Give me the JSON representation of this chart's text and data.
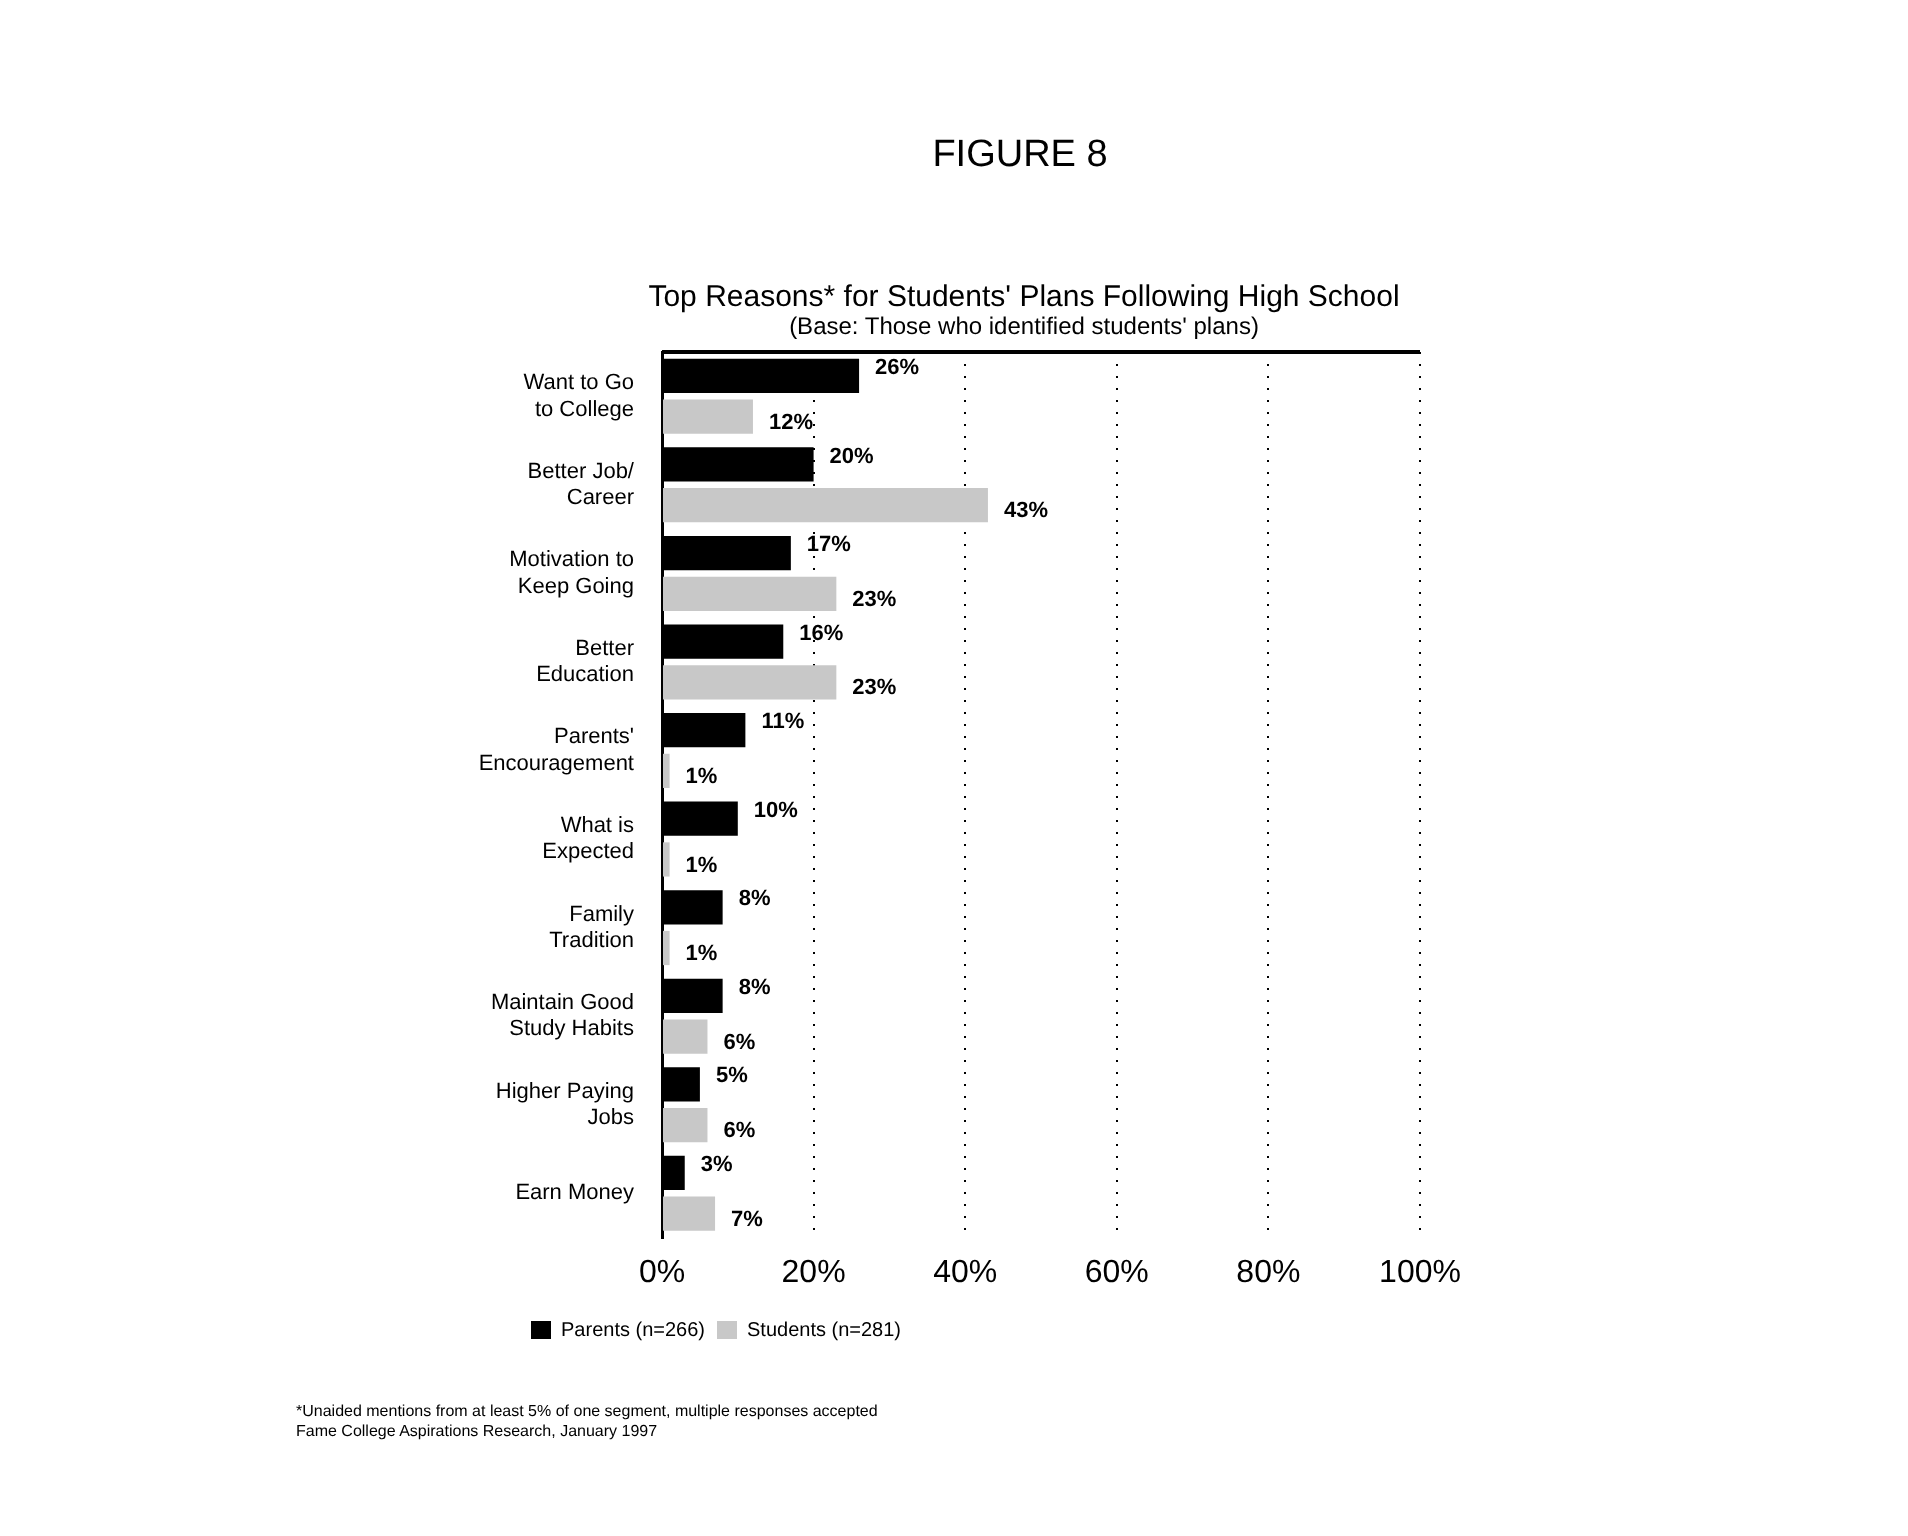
{
  "chart_data": {
    "type": "bar",
    "orientation": "horizontal",
    "title": "FIGURE 8",
    "subtitle": "Top Reasons* for Students' Plans Following High School\n(Base: Those who identified students' plans)",
    "categories": [
      "Want to Go\nto College",
      "Better Job/\nCareer",
      "Motivation to\nKeep Going",
      "Better\nEducation",
      "Parents'\nEncouragement",
      "What is\nExpected",
      "Family\nTradition",
      "Maintain Good\nStudy Habits",
      "Higher Paying\nJobs",
      "Earn Money"
    ],
    "series": [
      {
        "name": "Parents (n=266)",
        "color": "#000000",
        "values": [
          26,
          20,
          17,
          16,
          11,
          10,
          8,
          8,
          5,
          3
        ],
        "value_labels": [
          "26%",
          "20%",
          "17%",
          "16%",
          "11%",
          "10%",
          "8%",
          "8%",
          "5%",
          "3%"
        ]
      },
      {
        "name": "Students (n=281)",
        "color": "#c8c8c8",
        "values": [
          12,
          43,
          23,
          23,
          1,
          1,
          1,
          6,
          6,
          7
        ],
        "value_labels": [
          "12%",
          "43%",
          "23%",
          "23%",
          "1%",
          "1%",
          "1%",
          "6%",
          "6%",
          "7%"
        ]
      }
    ],
    "xlim": [
      0,
      100
    ],
    "xticks": [
      {
        "value": 0,
        "label": "0%"
      },
      {
        "value": 20,
        "label": "20%"
      },
      {
        "value": 40,
        "label": "40%"
      },
      {
        "value": 60,
        "label": "60%"
      },
      {
        "value": 80,
        "label": "80%"
      },
      {
        "value": 100,
        "label": "100%"
      }
    ],
    "grid": "x",
    "legend": "bottom",
    "annotations": [
      "*Unaided mentions from at least 5% of one segment, multiple responses accepted",
      "Fame College Aspirations Research, January 1997"
    ]
  }
}
